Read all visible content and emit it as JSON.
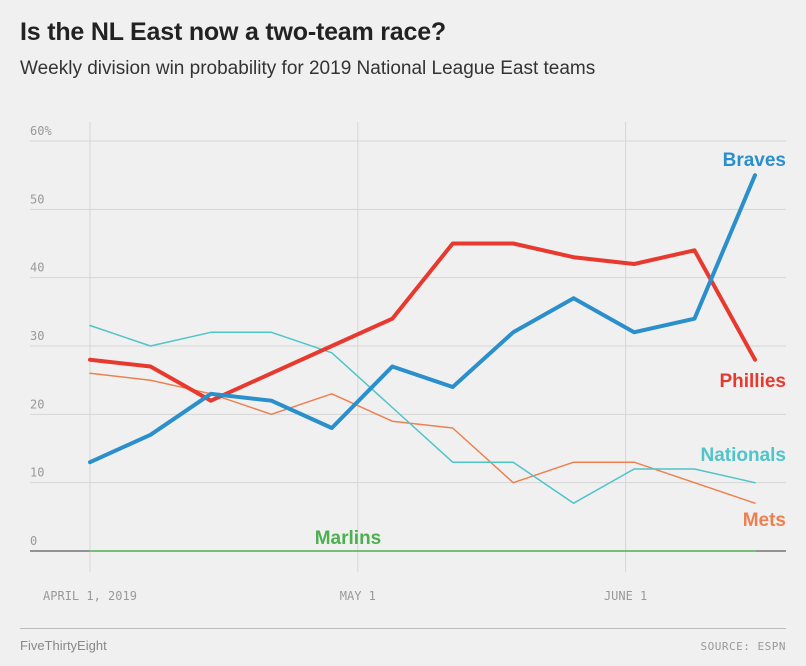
{
  "header": {
    "title": "Is the NL East now a two-team race?",
    "subtitle": "Weekly division win probability for 2019 National League East teams"
  },
  "footer": {
    "brand": "FiveThirtyEight",
    "source": "SOURCE: ESPN"
  },
  "chart_data": {
    "type": "line",
    "title": "Is the NL East now a two-team race?",
    "subtitle": "Weekly division win probability for 2019 National League East teams",
    "xlabel": "",
    "ylabel": "",
    "ylim": [
      0,
      60
    ],
    "y_ticks": [
      0,
      10,
      20,
      30,
      40,
      50,
      60
    ],
    "y_tick_labels": [
      "0",
      "10",
      "20",
      "30",
      "40",
      "50",
      "60%"
    ],
    "x_tick_labels": [
      "APRIL 1, 2019",
      "MAY 1",
      "JUNE 1"
    ],
    "x": [
      "2019-04-01",
      "2019-04-08",
      "2019-04-15",
      "2019-04-22",
      "2019-04-29",
      "2019-05-06",
      "2019-05-13",
      "2019-05-20",
      "2019-05-27",
      "2019-06-03",
      "2019-06-10",
      "2019-06-17"
    ],
    "grid": true,
    "legend": "direct labels at line ends",
    "series": [
      {
        "name": "Braves",
        "color": "#2a8fcb",
        "weight": "heavy",
        "values": [
          13,
          17,
          23,
          22,
          18,
          27,
          24,
          32,
          37,
          32,
          34,
          55
        ]
      },
      {
        "name": "Phillies",
        "color": "#e8392f",
        "weight": "heavy",
        "values": [
          28,
          27,
          22,
          26,
          30,
          34,
          45,
          45,
          43,
          42,
          44,
          28
        ]
      },
      {
        "name": "Nationals",
        "color": "#4fc4c9",
        "weight": "light",
        "values": [
          33,
          30,
          32,
          32,
          29,
          21,
          13,
          13,
          7,
          12,
          12,
          10
        ]
      },
      {
        "name": "Mets",
        "color": "#ee8050",
        "weight": "light",
        "values": [
          26,
          25,
          23,
          20,
          23,
          19,
          18,
          10,
          13,
          13,
          10,
          7
        ]
      },
      {
        "name": "Marlins",
        "color": "#4caf50",
        "weight": "light",
        "values": [
          0,
          0,
          0,
          0,
          0,
          0,
          0,
          0,
          0,
          0,
          0,
          0
        ]
      }
    ]
  }
}
